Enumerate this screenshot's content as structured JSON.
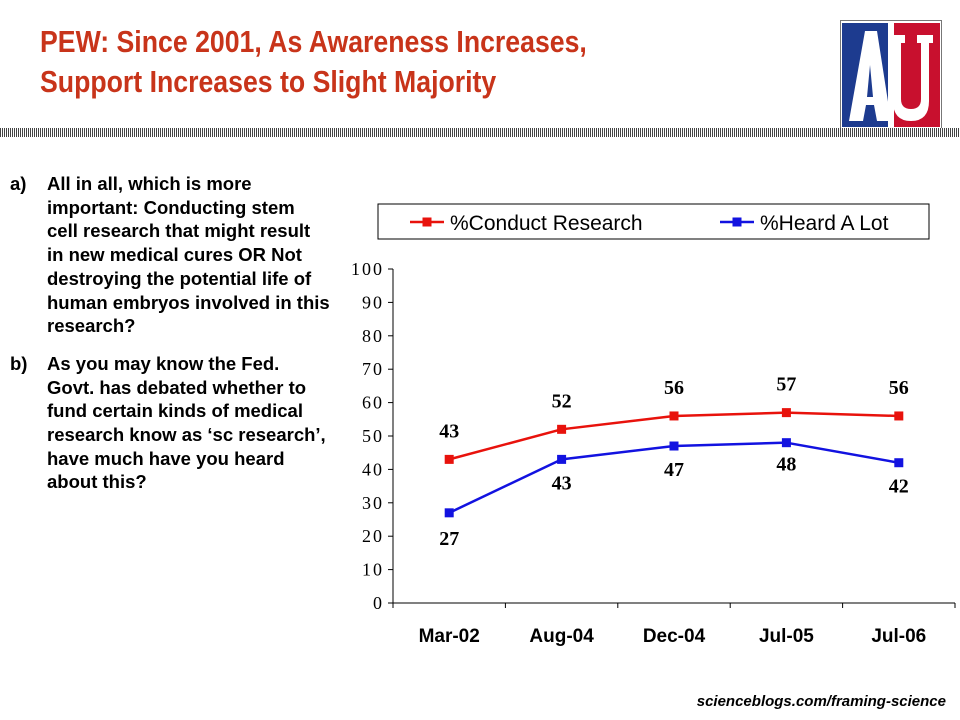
{
  "header": {
    "title_line1": "PEW: Since 2001, As Awareness Increases,",
    "title_line2": "Support Increases to Slight Majority"
  },
  "logo": {
    "text": "AU",
    "colors": {
      "blue": "#1d3b8f",
      "red": "#c8102e"
    }
  },
  "questions": [
    {
      "marker": "a)",
      "text": "All in all, which is more important: Conducting stem cell research that might result in new medical cures OR Not destroying the potential life of human embryos involved in this research?"
    },
    {
      "marker": "b)",
      "text": "As you may know the Fed. Govt. has debated whether to fund certain kinds of medical research know as ‘sc research’, have much have you heard about this?"
    }
  ],
  "chart_data": {
    "type": "line",
    "categories": [
      "Mar-02",
      "Aug-04",
      "Dec-04",
      "Jul-05",
      "Jul-06"
    ],
    "ylim": [
      0,
      100
    ],
    "yticks": [
      "0",
      "10",
      "20",
      "30",
      "40",
      "50",
      "60",
      "70",
      "80",
      "90",
      "100"
    ],
    "legend_position": "top",
    "grid": false,
    "series": [
      {
        "name": "%Conduct Research",
        "color": "#e8120c",
        "values": [
          43,
          52,
          56,
          57,
          56
        ],
        "labels": [
          "43",
          "52",
          "56",
          "57",
          "56"
        ]
      },
      {
        "name": "%Heard A Lot",
        "color": "#1212e0",
        "values": [
          27,
          43,
          47,
          48,
          42
        ],
        "labels": [
          "27",
          "43",
          "47",
          "48",
          "42"
        ]
      }
    ]
  },
  "footer": {
    "source": "scienceblogs.com/framing-science"
  }
}
